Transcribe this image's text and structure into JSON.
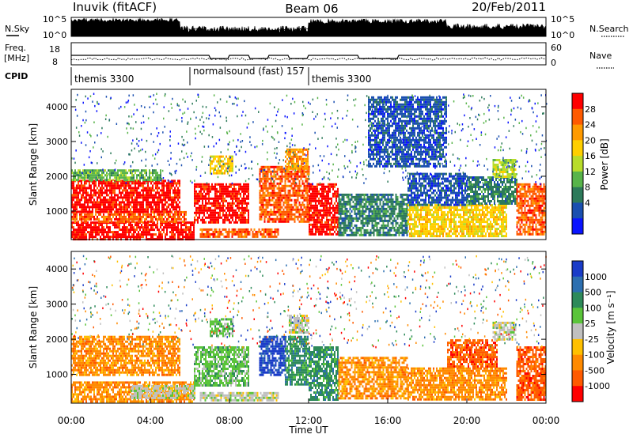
{
  "header": {
    "station": "Inuvik (fitACF)",
    "beam": "Beam 06",
    "date": "20/Feb/2011"
  },
  "top_panels": {
    "nsky_label": "N.Sky",
    "nsearch_label": "N.Search",
    "noise_ticks_left": [
      "10^5",
      "10^0"
    ],
    "noise_ticks_right": [
      "10^5",
      "10^0"
    ],
    "freq_label": "Freq.",
    "freq_unit": "[MHz]",
    "freq_ticks": [
      "18",
      "8"
    ],
    "nave_label": "Nave",
    "nave_ticks": [
      "60",
      "0"
    ],
    "cpid_label": "CPID",
    "cpid_segments": [
      {
        "name": "themis 3300",
        "start_hour": 0.0
      },
      {
        "name": "normalsound (fast) 157",
        "start_hour": 6.0
      },
      {
        "name": "themis 3300",
        "start_hour": 12.0
      }
    ]
  },
  "chart_data": [
    {
      "type": "heatmap",
      "parameter": "Power",
      "ylabel": "Slant Range [km]",
      "xlim_hours": [
        0,
        24
      ],
      "ylim_km": [
        180,
        4500
      ],
      "yticks": [
        1000,
        2000,
        3000,
        4000
      ],
      "colorbar_label": "Power [dB]",
      "colorbar_ticks": [
        "28",
        "24",
        "20",
        "16",
        "12",
        "8",
        "4"
      ],
      "colorbar_colors": [
        "#ff0000",
        "#ff5a00",
        "#ff9a00",
        "#ffcf00",
        "#b8dc2a",
        "#58b44a",
        "#2d7a5a",
        "#1a4fb0",
        "#0a14ff"
      ],
      "echo_regions": [
        {
          "t0": 0.0,
          "t1": 6.2,
          "r0": 200,
          "r1": 700,
          "level": 0
        },
        {
          "t0": 0.0,
          "t1": 5.8,
          "r0": 700,
          "r1": 1000,
          "level": 1
        },
        {
          "t0": 0.0,
          "t1": 5.5,
          "r0": 1000,
          "r1": 1900,
          "level": 0
        },
        {
          "t0": 0.0,
          "t1": 4.5,
          "r0": 1900,
          "r1": 2200,
          "level": 5
        },
        {
          "t0": 6.2,
          "t1": 9.0,
          "r0": 700,
          "r1": 1800,
          "level": 0
        },
        {
          "t0": 6.5,
          "t1": 10.5,
          "r0": 250,
          "r1": 500,
          "level": 1
        },
        {
          "t0": 7.0,
          "t1": 8.2,
          "r0": 2100,
          "r1": 2600,
          "level": 3
        },
        {
          "t0": 9.5,
          "t1": 12.0,
          "r0": 700,
          "r1": 2300,
          "level": 1
        },
        {
          "t0": 10.8,
          "t1": 12.0,
          "r0": 2200,
          "r1": 2800,
          "level": 2
        },
        {
          "t0": 12.0,
          "t1": 13.5,
          "r0": 300,
          "r1": 1800,
          "level": 0
        },
        {
          "t0": 13.5,
          "t1": 17.0,
          "r0": 300,
          "r1": 1500,
          "level": 6
        },
        {
          "t0": 17.0,
          "t1": 22.0,
          "r0": 300,
          "r1": 1200,
          "level": 3
        },
        {
          "t0": 17.0,
          "t1": 20.0,
          "r0": 1200,
          "r1": 2100,
          "level": 7
        },
        {
          "t0": 20.0,
          "t1": 22.5,
          "r0": 1200,
          "r1": 2000,
          "level": 6
        },
        {
          "t0": 21.3,
          "t1": 22.5,
          "r0": 2000,
          "r1": 2500,
          "level": 4
        },
        {
          "t0": 22.5,
          "t1": 24.0,
          "r0": 300,
          "r1": 1800,
          "level": 1
        },
        {
          "t0": 15.0,
          "t1": 19.0,
          "r0": 2300,
          "r1": 4300,
          "level": 7
        }
      ]
    },
    {
      "type": "heatmap",
      "parameter": "Velocity",
      "ylabel": "Slant Range [km]",
      "xlabel": "Time UT",
      "xlim_hours": [
        0,
        24
      ],
      "ylim_km": [
        180,
        4500
      ],
      "yticks": [
        1000,
        2000,
        3000,
        4000
      ],
      "xticks": [
        "00:00",
        "04:00",
        "08:00",
        "12:00",
        "16:00",
        "20:00",
        "00:00"
      ],
      "colorbar_label": "Velocity [m s⁻¹]",
      "colorbar_ticks": [
        "1000",
        "500",
        "100",
        "25",
        "-25",
        "-100",
        "-500",
        "-1000"
      ],
      "colorbar_colors": [
        "#1a3cc8",
        "#2d6fb0",
        "#2e8a5a",
        "#5ac43a",
        "#c0c0c0",
        "#ffc000",
        "#ff8a00",
        "#ff5a00",
        "#ff0000"
      ],
      "echo_regions": [
        {
          "t0": 0.0,
          "t1": 6.2,
          "r0": 200,
          "r1": 800,
          "level": 6
        },
        {
          "t0": 3.0,
          "t1": 6.2,
          "r0": 300,
          "r1": 700,
          "level": 4
        },
        {
          "t0": 0.0,
          "t1": 5.5,
          "r0": 1000,
          "r1": 2100,
          "level": 6
        },
        {
          "t0": 6.2,
          "t1": 9.0,
          "r0": 700,
          "r1": 1800,
          "level": 3
        },
        {
          "t0": 6.5,
          "t1": 10.5,
          "r0": 250,
          "r1": 500,
          "level": 4
        },
        {
          "t0": 7.0,
          "t1": 8.2,
          "r0": 2100,
          "r1": 2600,
          "level": 3
        },
        {
          "t0": 9.5,
          "t1": 10.8,
          "r0": 1000,
          "r1": 2100,
          "level": 0
        },
        {
          "t0": 10.8,
          "t1": 12.0,
          "r0": 700,
          "r1": 2100,
          "level": 2
        },
        {
          "t0": 11.0,
          "t1": 12.0,
          "r0": 2200,
          "r1": 2700,
          "level": 4
        },
        {
          "t0": 12.0,
          "t1": 13.5,
          "r0": 300,
          "r1": 1800,
          "level": 2
        },
        {
          "t0": 13.5,
          "t1": 17.0,
          "r0": 300,
          "r1": 1500,
          "level": 6
        },
        {
          "t0": 17.0,
          "t1": 22.0,
          "r0": 300,
          "r1": 1200,
          "level": 6
        },
        {
          "t0": 19.0,
          "t1": 21.5,
          "r0": 1200,
          "r1": 2000,
          "level": 7
        },
        {
          "t0": 21.3,
          "t1": 22.5,
          "r0": 2000,
          "r1": 2500,
          "level": 4
        },
        {
          "t0": 22.5,
          "t1": 24.0,
          "r0": 300,
          "r1": 1800,
          "level": 7
        }
      ]
    }
  ]
}
